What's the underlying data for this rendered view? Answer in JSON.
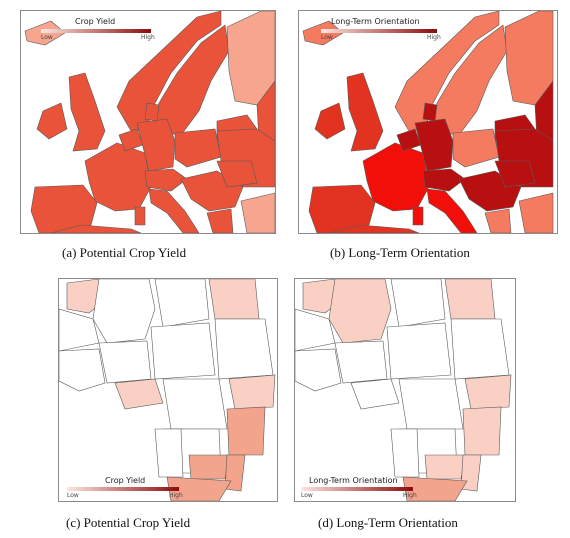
{
  "colors": {
    "sea": "#ffffff",
    "border": "#5a5a5a",
    "ramp_low": "#fde6df",
    "ramp_high": "#8b0d0d",
    "eu_yield": "#e8533a",
    "eu_lto_deep": "#b81010",
    "eu_lto_mid": "#e23320",
    "eu_lto_light": "#f47a60",
    "africa_light": "#fbd0c4",
    "africa_mid": "#f3a48c",
    "africa_none": "#ffffff"
  },
  "panels": {
    "a": {
      "caption": "(a)  Potential Crop Yield",
      "legend": {
        "title": "Crop Yield",
        "low": "Low",
        "high": "High"
      }
    },
    "b": {
      "caption": "(b)  Long-Term Orientation",
      "legend": {
        "title": "Long-Term Orientation",
        "low": "Low",
        "high": "High"
      }
    },
    "c": {
      "caption": "(c)  Potential Crop Yield",
      "legend": {
        "title": "Crop Yield",
        "low": "Low",
        "high": "High"
      }
    },
    "d": {
      "caption": "(d)  Long-Term Orientation",
      "legend": {
        "title": "Long-Term Orientation",
        "low": "Low",
        "high": "High"
      }
    }
  }
}
